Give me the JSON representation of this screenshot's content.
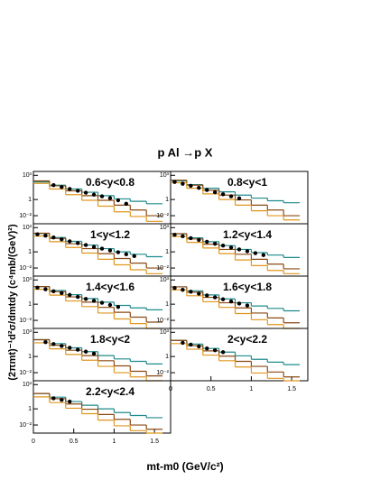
{
  "title": "p Al →p X",
  "x_label": "mt-m0 (GeV/c²)",
  "y_label": "(2πmt)⁻¹d²σ/dmtdy (c⁴mb/(GeV)²)",
  "chart_data": [
    {
      "type": "step",
      "annotation": "0.6<y<0.8",
      "log_y": true,
      "xlim": [
        0,
        1.7
      ],
      "ylim": [
        0.001,
        3000
      ],
      "yticks": [
        {
          "value": 1000,
          "label": "10³"
        },
        1,
        {
          "value": 0.01,
          "label": "10⁻²"
        }
      ],
      "x": [
        0,
        0.2,
        0.4,
        0.6,
        0.8,
        1.0,
        1.2,
        1.4
      ],
      "series": [
        {
          "color": "#1f8a8c",
          "values": [
            150,
            60,
            20,
            8,
            3,
            1.2,
            0.6,
            0.3
          ]
        },
        {
          "color": "#8b4a14",
          "values": [
            200,
            50,
            12,
            3,
            0.8,
            0.2,
            0.05,
            0.01
          ]
        },
        {
          "color": "#e0961e",
          "values": [
            100,
            20,
            4,
            0.8,
            0.15,
            0.03,
            0.008,
            0.002
          ]
        },
        {
          "color": "#000000",
          "points": true,
          "x": [
            0.25,
            0.35,
            0.45,
            0.55,
            0.65,
            0.75,
            0.85,
            0.95,
            1.05,
            1.15
          ],
          "values": [
            60,
            35,
            20,
            12,
            7,
            4,
            2.5,
            1.5,
            0.8,
            0.3
          ]
        }
      ]
    },
    {
      "type": "step",
      "annotation": "0.8<y<1",
      "log_y": true,
      "xlim": [
        0,
        1.7
      ],
      "ylim": [
        0.001,
        3000
      ],
      "yticks": [
        {
          "value": 1000,
          "label": "10³"
        },
        1,
        {
          "value": 0.01,
          "label": "10⁻²"
        }
      ],
      "x": [
        0,
        0.2,
        0.4,
        0.6,
        0.8,
        1.0,
        1.2,
        1.4
      ],
      "series": [
        {
          "color": "#1f8a8c",
          "values": [
            200,
            70,
            25,
            9,
            3.5,
            1.5,
            0.7,
            0.4
          ]
        },
        {
          "color": "#8b4a14",
          "values": [
            250,
            60,
            14,
            3.5,
            0.9,
            0.2,
            0.05,
            0.01
          ]
        },
        {
          "color": "#e0961e",
          "values": [
            120,
            25,
            5,
            1,
            0.2,
            0.04,
            0.01,
            0.003
          ]
        },
        {
          "color": "#000000",
          "points": true,
          "x": [
            0.05,
            0.15,
            0.25,
            0.35,
            0.45,
            0.55,
            0.65,
            0.75,
            0.85
          ],
          "values": [
            150,
            90,
            50,
            28,
            15,
            8,
            4.5,
            2.5,
            1.4
          ]
        }
      ]
    },
    {
      "type": "step",
      "annotation": "1<y<1.2",
      "log_y": true,
      "xlim": [
        0,
        1.7
      ],
      "ylim": [
        0.001,
        3000
      ],
      "yticks": [
        {
          "value": 1000,
          "label": "10³"
        },
        1,
        {
          "value": 0.01,
          "label": "10⁻²"
        }
      ],
      "x": [
        0,
        0.2,
        0.4,
        0.6,
        0.8,
        1.0,
        1.2,
        1.4
      ],
      "series": [
        {
          "color": "#1f8a8c",
          "values": [
            180,
            60,
            20,
            7,
            2.5,
            1,
            0.5,
            0.25
          ]
        },
        {
          "color": "#8b4a14",
          "values": [
            200,
            45,
            10,
            2.5,
            0.6,
            0.15,
            0.04,
            0.01
          ]
        },
        {
          "color": "#e0961e",
          "values": [
            90,
            18,
            3.5,
            0.7,
            0.12,
            0.025,
            0.006,
            0.002
          ]
        },
        {
          "color": "#000000",
          "points": true,
          "x": [
            0.05,
            0.15,
            0.25,
            0.35,
            0.45,
            0.55,
            0.65,
            0.75,
            0.85,
            0.95,
            1.05,
            1.15,
            1.25
          ],
          "values": [
            150,
            100,
            60,
            35,
            20,
            12,
            7,
            4,
            2.5,
            1.5,
            0.9,
            0.5,
            0.3
          ]
        }
      ]
    },
    {
      "type": "step",
      "annotation": "1.2<y<1.4",
      "log_y": true,
      "xlim": [
        0,
        1.7
      ],
      "ylim": [
        0.001,
        3000
      ],
      "yticks": [
        {
          "value": 1000,
          "label": "10³"
        },
        1,
        {
          "value": 0.01,
          "label": "10⁻²"
        }
      ],
      "x": [
        0,
        0.2,
        0.4,
        0.6,
        0.8,
        1.0,
        1.2,
        1.4
      ],
      "series": [
        {
          "color": "#1f8a8c",
          "values": [
            170,
            55,
            18,
            6,
            2,
            0.8,
            0.4,
            0.2
          ]
        },
        {
          "color": "#8b4a14",
          "values": [
            180,
            40,
            9,
            2,
            0.5,
            0.12,
            0.03,
            0.008
          ]
        },
        {
          "color": "#e0961e",
          "values": [
            80,
            15,
            3,
            0.6,
            0.1,
            0.02,
            0.005,
            0.002
          ]
        },
        {
          "color": "#000000",
          "points": true,
          "x": [
            0.05,
            0.15,
            0.25,
            0.35,
            0.45,
            0.55,
            0.65,
            0.75,
            0.85,
            0.95,
            1.05,
            1.15
          ],
          "values": [
            130,
            85,
            50,
            30,
            18,
            10,
            6,
            3.5,
            2,
            1.2,
            0.7,
            0.4
          ]
        }
      ]
    },
    {
      "type": "step",
      "annotation": "1.4<y<1.6",
      "log_y": true,
      "xlim": [
        0,
        1.7
      ],
      "ylim": [
        0.001,
        3000
      ],
      "yticks": [
        {
          "value": 1000,
          "label": "10³"
        },
        1,
        {
          "value": 0.01,
          "label": "10⁻²"
        }
      ],
      "x": [
        0,
        0.2,
        0.4,
        0.6,
        0.8,
        1.0,
        1.2,
        1.4
      ],
      "series": [
        {
          "color": "#1f8a8c",
          "values": [
            150,
            50,
            15,
            5,
            1.8,
            0.7,
            0.35,
            0.2
          ]
        },
        {
          "color": "#8b4a14",
          "values": [
            150,
            35,
            8,
            1.8,
            0.4,
            0.1,
            0.025,
            0.006
          ]
        },
        {
          "color": "#e0961e",
          "values": [
            70,
            13,
            2.5,
            0.5,
            0.08,
            0.015,
            0.004,
            0.001
          ]
        },
        {
          "color": "#000000",
          "points": true,
          "x": [
            0.05,
            0.15,
            0.25,
            0.35,
            0.45,
            0.55,
            0.65,
            0.75,
            0.85,
            0.95,
            1.05
          ],
          "values": [
            110,
            70,
            40,
            24,
            14,
            8,
            4.5,
            2.6,
            1.5,
            0.8,
            0.45
          ]
        }
      ]
    },
    {
      "type": "step",
      "annotation": "1.6<y<1.8",
      "log_y": true,
      "xlim": [
        0,
        1.7
      ],
      "ylim": [
        0.001,
        3000
      ],
      "yticks": [
        {
          "value": 1000,
          "label": "10³"
        },
        1,
        {
          "value": 0.01,
          "label": "10⁻²"
        }
      ],
      "x": [
        0,
        0.2,
        0.4,
        0.6,
        0.8,
        1.0,
        1.2,
        1.4
      ],
      "series": [
        {
          "color": "#1f8a8c",
          "values": [
            140,
            45,
            14,
            4.5,
            1.5,
            0.6,
            0.3,
            0.15
          ]
        },
        {
          "color": "#8b4a14",
          "values": [
            140,
            30,
            7,
            1.5,
            0.35,
            0.08,
            0.02,
            0.005
          ]
        },
        {
          "color": "#e0961e",
          "values": [
            60,
            11,
            2,
            0.4,
            0.07,
            0.012,
            0.003,
            0.001
          ]
        },
        {
          "color": "#000000",
          "points": true,
          "x": [
            0.05,
            0.15,
            0.25,
            0.35,
            0.45,
            0.55,
            0.65,
            0.75,
            0.85,
            0.95
          ],
          "values": [
            100,
            60,
            35,
            20,
            12,
            7,
            4,
            2.2,
            1.2,
            0.7
          ]
        }
      ]
    },
    {
      "type": "step",
      "annotation": "1.8<y<2",
      "log_y": true,
      "xlim": [
        0,
        1.7
      ],
      "ylim": [
        0.001,
        3000
      ],
      "yticks": [
        {
          "value": 1000,
          "label": "10³"
        },
        1,
        {
          "value": 0.01,
          "label": "10⁻²"
        }
      ],
      "x": [
        0,
        0.2,
        0.4,
        0.6,
        0.8,
        1.0,
        1.2,
        1.4
      ],
      "series": [
        {
          "color": "#1f8a8c",
          "values": [
            120,
            40,
            12,
            4,
            1.3,
            0.5,
            0.25,
            0.12
          ]
        },
        {
          "color": "#8b4a14",
          "values": [
            120,
            25,
            6,
            1.3,
            0.3,
            0.07,
            0.015,
            0.004
          ]
        },
        {
          "color": "#e0961e",
          "values": [
            50,
            9,
            1.8,
            0.35,
            0.06,
            0.01,
            0.003,
            0.001
          ]
        },
        {
          "color": "#000000",
          "points": true,
          "x": [
            0.15,
            0.25,
            0.35,
            0.45,
            0.55,
            0.65,
            0.75
          ],
          "values": [
            60,
            35,
            20,
            12,
            7,
            4,
            2.3
          ]
        }
      ]
    },
    {
      "type": "step",
      "annotation": "2<y<2.2",
      "log_y": true,
      "xlim": [
        0,
        1.7
      ],
      "ylim": [
        0.001,
        3000
      ],
      "yticks": [
        {
          "value": 1000,
          "label": "10³"
        },
        1,
        {
          "value": 0.01,
          "label": "10⁻²"
        }
      ],
      "xticks": [
        0,
        0.5,
        1,
        1.5
      ],
      "x": [
        0,
        0.2,
        0.4,
        0.6,
        0.8,
        1.0,
        1.2,
        1.4
      ],
      "series": [
        {
          "color": "#1f8a8c",
          "values": [
            100,
            35,
            10,
            3.5,
            1.2,
            0.45,
            0.2,
            0.1
          ]
        },
        {
          "color": "#8b4a14",
          "values": [
            100,
            22,
            5,
            1.1,
            0.25,
            0.06,
            0.012,
            0.003
          ]
        },
        {
          "color": "#e0961e",
          "values": [
            40,
            8,
            1.5,
            0.3,
            0.05,
            0.009,
            0.002,
            0.001
          ]
        },
        {
          "color": "#000000",
          "points": true,
          "x": [
            0.15,
            0.25,
            0.35,
            0.45,
            0.55,
            0.65
          ],
          "values": [
            50,
            30,
            18,
            10,
            6,
            3.5
          ]
        }
      ]
    },
    {
      "type": "step",
      "annotation": "2.2<y<2.4",
      "log_y": true,
      "xlim": [
        0,
        1.7
      ],
      "ylim": [
        0.001,
        3000
      ],
      "yticks": [
        {
          "value": 1000,
          "label": "10³"
        },
        1,
        {
          "value": 0.01,
          "label": "10⁻²"
        }
      ],
      "xticks": [
        0,
        0.5,
        1,
        1.5
      ],
      "x": [
        0,
        0.2,
        0.4,
        0.6,
        0.8,
        1.0,
        1.2,
        1.4
      ],
      "series": [
        {
          "color": "#1f8a8c",
          "values": [
            80,
            28,
            8,
            2.8,
            1,
            0.35,
            0.15,
            0.08
          ]
        },
        {
          "color": "#8b4a14",
          "values": [
            80,
            18,
            4,
            0.9,
            0.2,
            0.05,
            0.01,
            0.003
          ]
        },
        {
          "color": "#e0961e",
          "values": [
            30,
            6,
            1.2,
            0.25,
            0.04,
            0.008,
            0.002,
            0.001
          ]
        },
        {
          "color": "#000000",
          "points": true,
          "x": [
            0.25,
            0.35,
            0.45
          ],
          "values": [
            20,
            13,
            8
          ]
        }
      ]
    }
  ]
}
